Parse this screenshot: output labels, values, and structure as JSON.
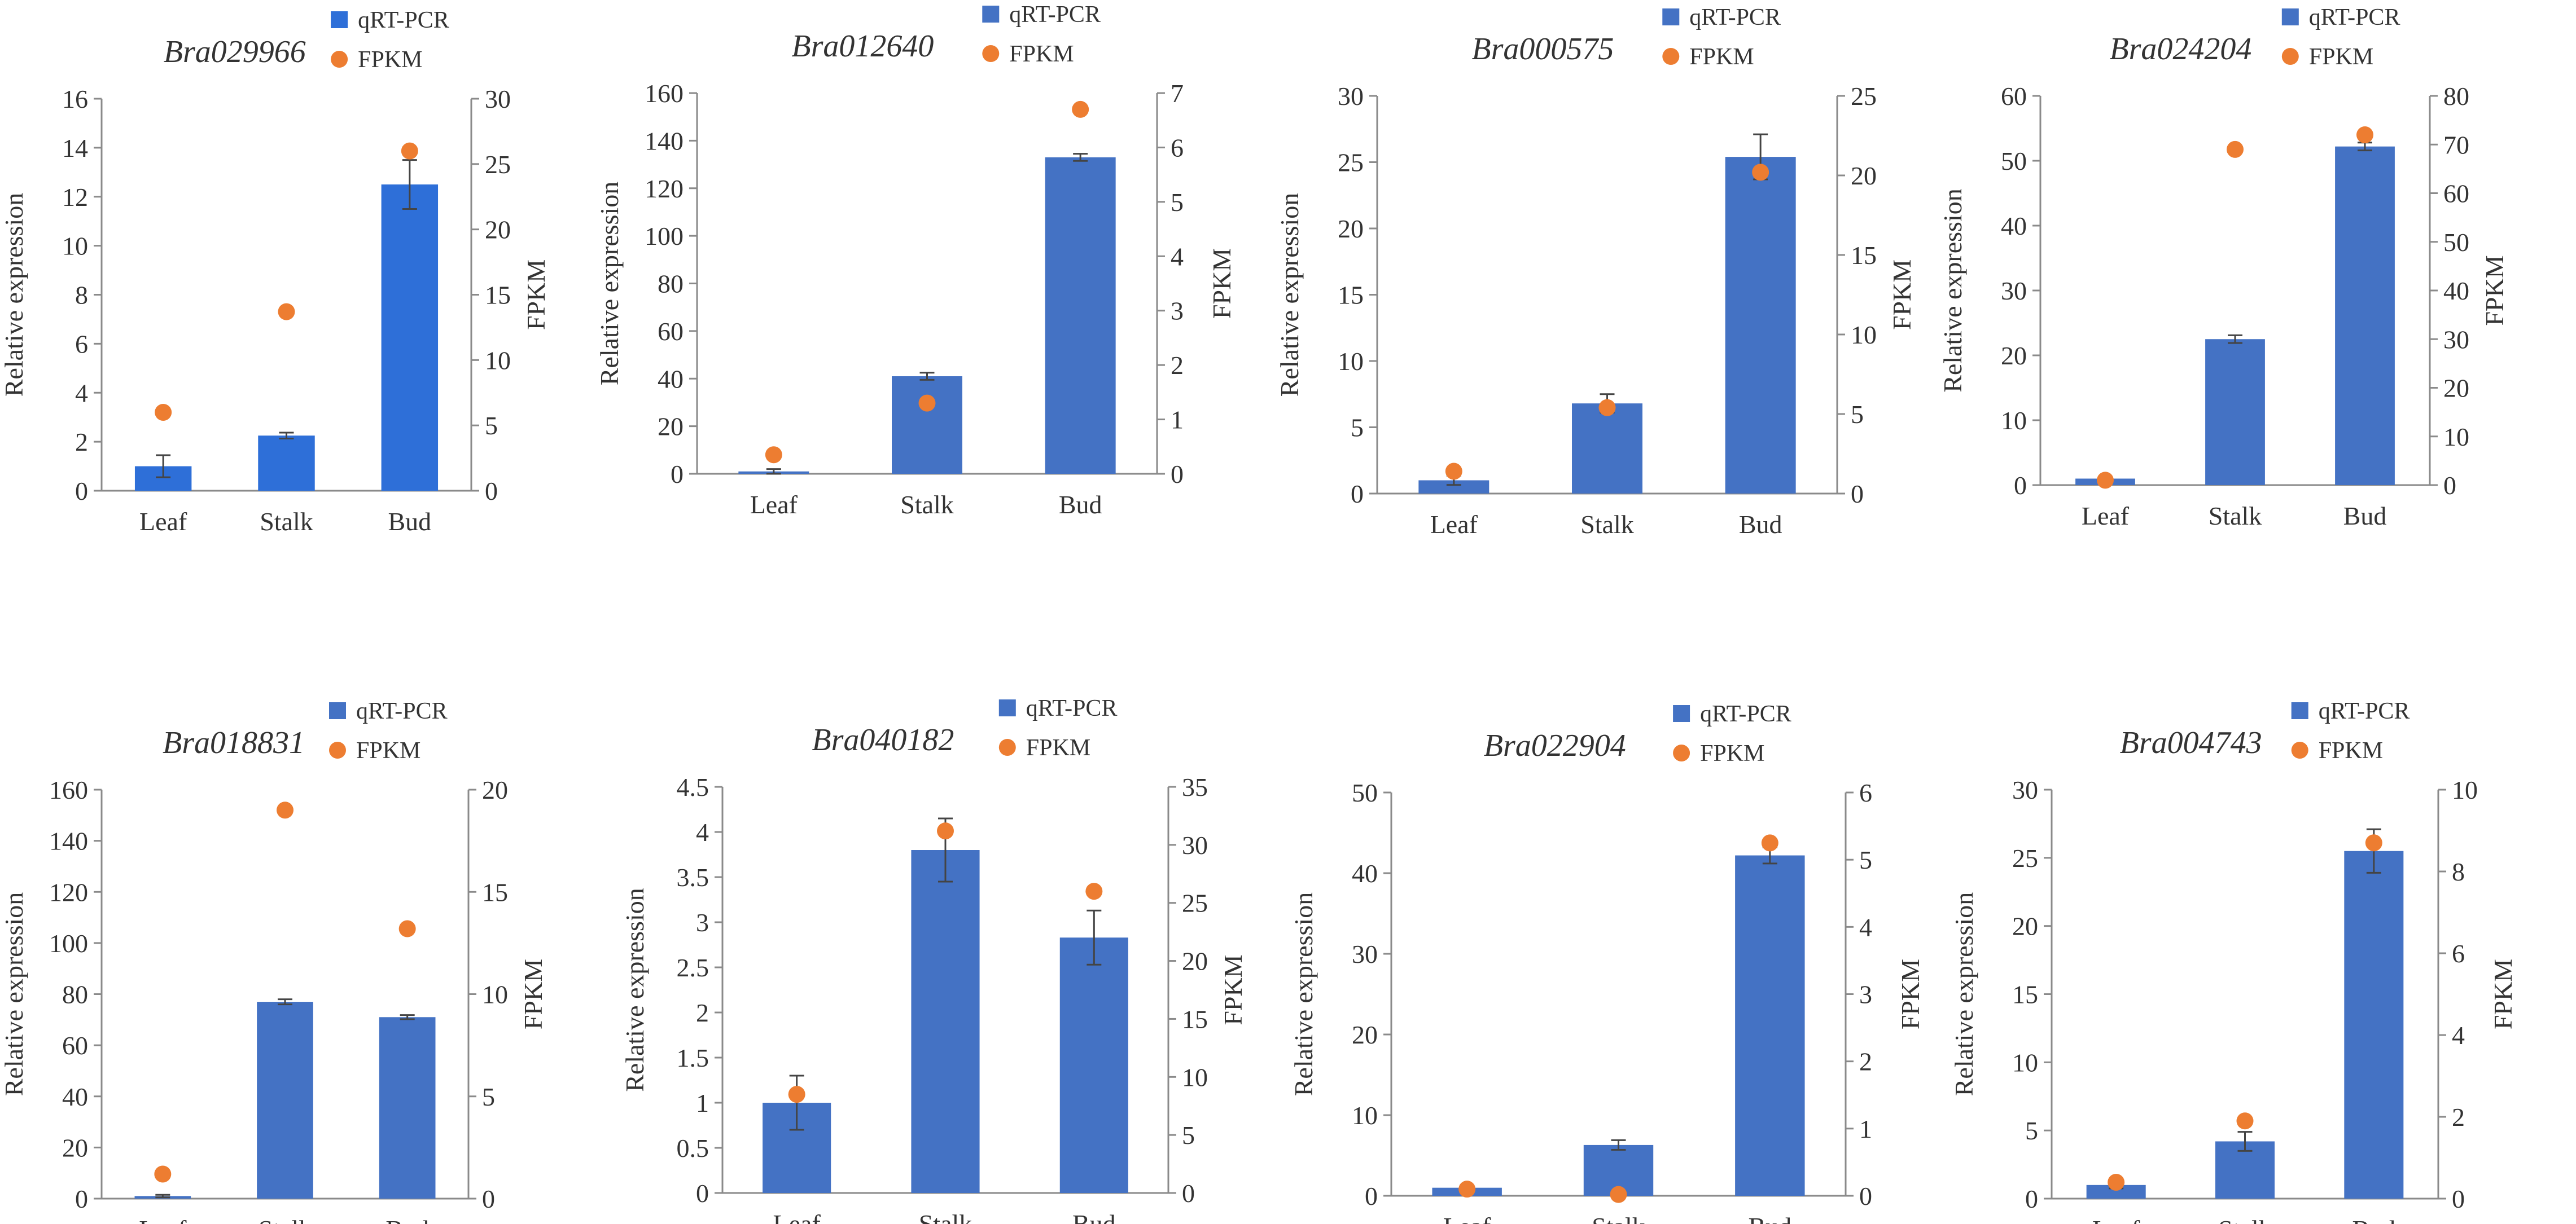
{
  "figure": {
    "panel_count": 8
  },
  "series_names": [
    "qRT-PCR",
    "FPKM"
  ],
  "colors": {
    "bar": "#4472c4",
    "bar_first_panel": "#2e6fd8",
    "point": "#ed7d31"
  },
  "chart_data": [
    {
      "type": "bar",
      "title": "Bra029966",
      "categories": [
        "Leaf",
        "Stalk",
        "Bud"
      ],
      "ylabel": "Relative expression",
      "y2label": "FPKM",
      "ylim": [
        0,
        16
      ],
      "yticks": [
        0,
        2,
        4,
        6,
        8,
        10,
        12,
        14,
        16
      ],
      "y2lim": [
        0,
        30
      ],
      "y2ticks": [
        0,
        5,
        10,
        15,
        20,
        25,
        30
      ],
      "series": [
        {
          "name": "qRT-PCR",
          "kind": "bar",
          "axis": "left",
          "values": [
            1.0,
            2.25,
            12.5
          ],
          "errors": [
            0.45,
            0.12,
            1.0
          ]
        },
        {
          "name": "FPKM",
          "kind": "scatter",
          "axis": "right",
          "values": [
            6.0,
            13.7,
            26.0
          ]
        }
      ],
      "legend": [
        "qRT-PCR",
        "FPKM"
      ]
    },
    {
      "type": "bar",
      "title": "Bra012640",
      "categories": [
        "Leaf",
        "Stalk",
        "Bud"
      ],
      "ylabel": "Relative expression",
      "y2label": "FPKM",
      "ylim": [
        0,
        160
      ],
      "yticks": [
        0,
        20,
        40,
        60,
        80,
        100,
        120,
        140,
        160
      ],
      "y2lim": [
        0,
        7
      ],
      "y2ticks": [
        0,
        1,
        2,
        3,
        4,
        5,
        6,
        7
      ],
      "series": [
        {
          "name": "qRT-PCR",
          "kind": "bar",
          "axis": "left",
          "values": [
            1.0,
            41.0,
            133.0
          ],
          "errors": [
            1.0,
            1.5,
            1.5
          ]
        },
        {
          "name": "FPKM",
          "kind": "scatter",
          "axis": "right",
          "values": [
            0.35,
            1.3,
            6.7
          ]
        }
      ],
      "legend": [
        "qRT-PCR",
        "FPKM"
      ]
    },
    {
      "type": "bar",
      "title": "Bra000575",
      "categories": [
        "Leaf",
        "Stalk",
        "Bud"
      ],
      "ylabel": "Relative expression",
      "y2label": "FPKM",
      "ylim": [
        0,
        30
      ],
      "yticks": [
        0,
        5,
        10,
        15,
        20,
        25,
        30
      ],
      "y2lim": [
        0,
        25
      ],
      "y2ticks": [
        0,
        5,
        10,
        15,
        20,
        25
      ],
      "series": [
        {
          "name": "qRT-PCR",
          "kind": "bar",
          "axis": "left",
          "values": [
            1.0,
            6.8,
            25.4
          ],
          "errors": [
            0.35,
            0.7,
            1.7
          ]
        },
        {
          "name": "FPKM",
          "kind": "scatter",
          "axis": "right",
          "values": [
            1.4,
            5.4,
            20.2
          ]
        }
      ],
      "legend": [
        "qRT-PCR",
        "FPKM"
      ]
    },
    {
      "type": "bar",
      "title": "Bra024204",
      "categories": [
        "Leaf",
        "Stalk",
        "Bud"
      ],
      "ylabel": "Relative expression",
      "y2label": "FPKM",
      "ylim": [
        0,
        60
      ],
      "yticks": [
        0,
        10,
        20,
        30,
        40,
        50,
        60
      ],
      "y2lim": [
        0,
        80
      ],
      "y2ticks": [
        0,
        10,
        20,
        30,
        40,
        50,
        60,
        70,
        80
      ],
      "series": [
        {
          "name": "qRT-PCR",
          "kind": "bar",
          "axis": "left",
          "values": [
            1.0,
            22.5,
            52.2
          ],
          "errors": [
            0.2,
            0.6,
            0.6
          ]
        },
        {
          "name": "FPKM",
          "kind": "scatter",
          "axis": "right",
          "values": [
            1.0,
            69.0,
            72.0
          ]
        }
      ],
      "legend": [
        "qRT-PCR",
        "FPKM"
      ]
    },
    {
      "type": "bar",
      "title": "Bra018831",
      "categories": [
        "Leaf",
        "Stalk",
        "Bud"
      ],
      "ylabel": "Relative expression",
      "y2label": "FPKM",
      "ylim": [
        0,
        160
      ],
      "yticks": [
        0,
        20,
        40,
        60,
        80,
        100,
        120,
        140,
        160
      ],
      "y2lim": [
        0,
        20
      ],
      "y2ticks": [
        0,
        5,
        10,
        15,
        20
      ],
      "series": [
        {
          "name": "qRT-PCR",
          "kind": "bar",
          "axis": "left",
          "values": [
            1.0,
            77.0,
            71.0
          ],
          "errors": [
            0.5,
            1.0,
            0.8
          ]
        },
        {
          "name": "FPKM",
          "kind": "scatter",
          "axis": "right",
          "values": [
            1.2,
            19.0,
            13.2
          ]
        }
      ],
      "legend": [
        "qRT-PCR",
        "FPKM"
      ]
    },
    {
      "type": "bar",
      "title": "Bra040182",
      "categories": [
        "Leaf",
        "Stalk",
        "Bud"
      ],
      "ylabel": "Relative expression",
      "y2label": "FPKM",
      "ylim": [
        0,
        4.5
      ],
      "yticks": [
        0,
        0.5,
        1,
        1.5,
        2,
        2.5,
        3,
        3.5,
        4,
        4.5
      ],
      "y2lim": [
        0,
        35
      ],
      "y2ticks": [
        0,
        5,
        10,
        15,
        20,
        25,
        30,
        35
      ],
      "series": [
        {
          "name": "qRT-PCR",
          "kind": "bar",
          "axis": "left",
          "values": [
            1.0,
            3.8,
            2.83
          ],
          "errors": [
            0.3,
            0.35,
            0.3
          ]
        },
        {
          "name": "FPKM",
          "kind": "scatter",
          "axis": "right",
          "values": [
            8.5,
            31.2,
            26.0
          ]
        }
      ],
      "legend": [
        "qRT-PCR",
        "FPKM"
      ]
    },
    {
      "type": "bar",
      "title": "Bra022904",
      "categories": [
        "Leaf",
        "Stalk",
        "Bud"
      ],
      "ylabel": "Relative expression",
      "y2label": "FPKM",
      "ylim": [
        0,
        50
      ],
      "yticks": [
        0,
        10,
        20,
        30,
        40,
        50
      ],
      "y2lim": [
        0,
        6
      ],
      "y2ticks": [
        0,
        1,
        2,
        3,
        4,
        5,
        6
      ],
      "series": [
        {
          "name": "qRT-PCR",
          "kind": "bar",
          "axis": "left",
          "values": [
            1.0,
            6.3,
            42.2
          ],
          "errors": [
            0.25,
            0.6,
            1.0
          ]
        },
        {
          "name": "FPKM",
          "kind": "scatter",
          "axis": "right",
          "values": [
            0.1,
            0.02,
            5.25
          ]
        }
      ],
      "legend": [
        "qRT-PCR",
        "FPKM"
      ]
    },
    {
      "type": "bar",
      "title": "Bra004743",
      "categories": [
        "Leaf",
        "Stalk",
        "Bud"
      ],
      "ylabel": "Relative expression",
      "y2label": "FPKM",
      "ylim": [
        0,
        30
      ],
      "yticks": [
        0,
        5,
        10,
        15,
        20,
        25,
        30
      ],
      "y2lim": [
        0,
        10
      ],
      "y2ticks": [
        0,
        2,
        4,
        6,
        8,
        10
      ],
      "series": [
        {
          "name": "qRT-PCR",
          "kind": "bar",
          "axis": "left",
          "values": [
            1.0,
            4.2,
            25.5
          ],
          "errors": [
            0.25,
            0.7,
            1.6
          ]
        },
        {
          "name": "FPKM",
          "kind": "scatter",
          "axis": "right",
          "values": [
            0.4,
            1.9,
            8.7
          ]
        }
      ],
      "legend": [
        "qRT-PCR",
        "FPKM"
      ]
    }
  ]
}
